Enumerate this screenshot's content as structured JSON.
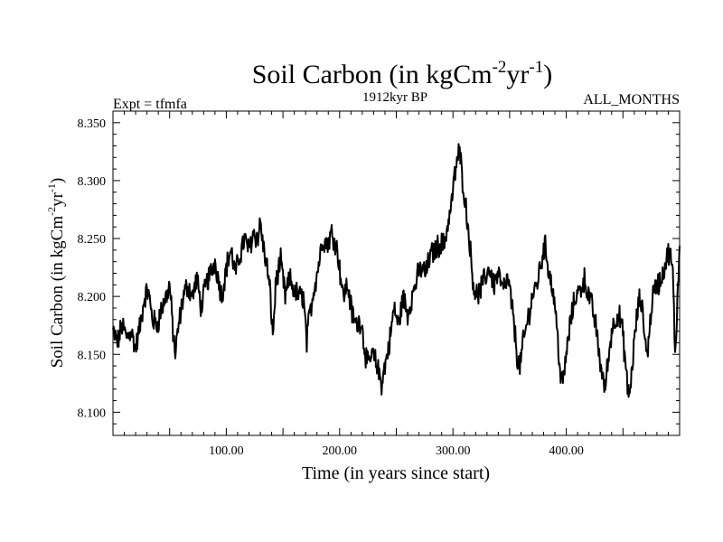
{
  "chart_data": {
    "type": "line",
    "title_main": "Soil Carbon (in kgCm",
    "title_sup1": "-2",
    "title_mid": "yr",
    "title_sup2": "-1",
    "title_end": ")",
    "subtitle_left": "Expt = tfmfa",
    "subtitle_center": "1912kyr BP",
    "subtitle_right": "ALL_MONTHS",
    "xlabel": "Time (in years since start)",
    "ylabel_main": "Soil Carbon (in kgCm",
    "ylabel_sup1": "-2",
    "ylabel_mid": "yr",
    "ylabel_sup2": "-1",
    "ylabel_end": ")",
    "xlim": [
      0,
      500
    ],
    "ylim": [
      8.08,
      8.36
    ],
    "x_ticks": [
      {
        "value": 100,
        "label": "100.00"
      },
      {
        "value": 200,
        "label": "200.00"
      },
      {
        "value": 300,
        "label": "300.00"
      },
      {
        "value": 400,
        "label": "400.00"
      }
    ],
    "y_ticks": [
      {
        "value": 8.1,
        "label": "8.100"
      },
      {
        "value": 8.15,
        "label": "8.150"
      },
      {
        "value": 8.2,
        "label": "8.200"
      },
      {
        "value": 8.25,
        "label": "8.250"
      },
      {
        "value": 8.3,
        "label": "8.300"
      },
      {
        "value": 8.35,
        "label": "8.350"
      }
    ],
    "series": [
      {
        "name": "soil_carbon",
        "anchors": [
          [
            0,
            8.17
          ],
          [
            4,
            8.16
          ],
          [
            8,
            8.175
          ],
          [
            12,
            8.165
          ],
          [
            16,
            8.17
          ],
          [
            20,
            8.155
          ],
          [
            24,
            8.175
          ],
          [
            28,
            8.2
          ],
          [
            31,
            8.205
          ],
          [
            35,
            8.18
          ],
          [
            39,
            8.175
          ],
          [
            43,
            8.19
          ],
          [
            47,
            8.2
          ],
          [
            50,
            8.21
          ],
          [
            53,
            8.17
          ],
          [
            55,
            8.15
          ],
          [
            58,
            8.175
          ],
          [
            62,
            8.2
          ],
          [
            66,
            8.21
          ],
          [
            70,
            8.2
          ],
          [
            74,
            8.215
          ],
          [
            78,
            8.19
          ],
          [
            82,
            8.21
          ],
          [
            86,
            8.22
          ],
          [
            90,
            8.23
          ],
          [
            93,
            8.215
          ],
          [
            96,
            8.2
          ],
          [
            100,
            8.225
          ],
          [
            104,
            8.24
          ],
          [
            108,
            8.22
          ],
          [
            112,
            8.235
          ],
          [
            116,
            8.25
          ],
          [
            120,
            8.24
          ],
          [
            124,
            8.255
          ],
          [
            128,
            8.25
          ],
          [
            130,
            8.265
          ],
          [
            133,
            8.24
          ],
          [
            136,
            8.225
          ],
          [
            139,
            8.2
          ],
          [
            141,
            8.165
          ],
          [
            144,
            8.215
          ],
          [
            148,
            8.23
          ],
          [
            152,
            8.2
          ],
          [
            156,
            8.215
          ],
          [
            160,
            8.205
          ],
          [
            164,
            8.2
          ],
          [
            168,
            8.2
          ],
          [
            171,
            8.16
          ],
          [
            173,
            8.18
          ],
          [
            177,
            8.205
          ],
          [
            181,
            8.225
          ],
          [
            185,
            8.25
          ],
          [
            189,
            8.245
          ],
          [
            193,
            8.255
          ],
          [
            197,
            8.245
          ],
          [
            200,
            8.225
          ],
          [
            203,
            8.2
          ],
          [
            207,
            8.21
          ],
          [
            211,
            8.185
          ],
          [
            215,
            8.175
          ],
          [
            219,
            8.18
          ],
          [
            222,
            8.155
          ],
          [
            225,
            8.14
          ],
          [
            229,
            8.15
          ],
          [
            233,
            8.14
          ],
          [
            237,
            8.125
          ],
          [
            240,
            8.14
          ],
          [
            244,
            8.16
          ],
          [
            248,
            8.19
          ],
          [
            252,
            8.175
          ],
          [
            256,
            8.2
          ],
          [
            260,
            8.185
          ],
          [
            264,
            8.2
          ],
          [
            268,
            8.215
          ],
          [
            272,
            8.225
          ],
          [
            276,
            8.22
          ],
          [
            280,
            8.235
          ],
          [
            284,
            8.24
          ],
          [
            288,
            8.245
          ],
          [
            292,
            8.245
          ],
          [
            295,
            8.26
          ],
          [
            298,
            8.275
          ],
          [
            301,
            8.3
          ],
          [
            304,
            8.32
          ],
          [
            306,
            8.325
          ],
          [
            308,
            8.305
          ],
          [
            311,
            8.28
          ],
          [
            314,
            8.255
          ],
          [
            317,
            8.22
          ],
          [
            320,
            8.2
          ],
          [
            324,
            8.205
          ],
          [
            328,
            8.215
          ],
          [
            332,
            8.225
          ],
          [
            336,
            8.21
          ],
          [
            340,
            8.22
          ],
          [
            344,
            8.205
          ],
          [
            348,
            8.215
          ],
          [
            351,
            8.2
          ],
          [
            354,
            8.175
          ],
          [
            357,
            8.145
          ],
          [
            359,
            8.14
          ],
          [
            362,
            8.16
          ],
          [
            366,
            8.18
          ],
          [
            370,
            8.2
          ],
          [
            374,
            8.21
          ],
          [
            378,
            8.23
          ],
          [
            381,
            8.245
          ],
          [
            385,
            8.22
          ],
          [
            389,
            8.2
          ],
          [
            392,
            8.17
          ],
          [
            395,
            8.13
          ],
          [
            397,
            8.125
          ],
          [
            400,
            8.15
          ],
          [
            404,
            8.18
          ],
          [
            408,
            8.2
          ],
          [
            412,
            8.205
          ],
          [
            416,
            8.215
          ],
          [
            420,
            8.2
          ],
          [
            423,
            8.19
          ],
          [
            426,
            8.175
          ],
          [
            429,
            8.15
          ],
          [
            432,
            8.13
          ],
          [
            434,
            8.12
          ],
          [
            437,
            8.145
          ],
          [
            440,
            8.17
          ],
          [
            443,
            8.18
          ],
          [
            446,
            8.185
          ],
          [
            449,
            8.175
          ],
          [
            452,
            8.145
          ],
          [
            454,
            8.12
          ],
          [
            456,
            8.115
          ],
          [
            459,
            8.15
          ],
          [
            462,
            8.18
          ],
          [
            465,
            8.2
          ],
          [
            468,
            8.18
          ],
          [
            471,
            8.15
          ],
          [
            473,
            8.165
          ],
          [
            476,
            8.2
          ],
          [
            480,
            8.21
          ],
          [
            484,
            8.215
          ],
          [
            488,
            8.23
          ],
          [
            491,
            8.24
          ],
          [
            494,
            8.22
          ],
          [
            496,
            8.15
          ],
          [
            497,
            8.17
          ],
          [
            500,
            8.245
          ]
        ]
      }
    ]
  }
}
